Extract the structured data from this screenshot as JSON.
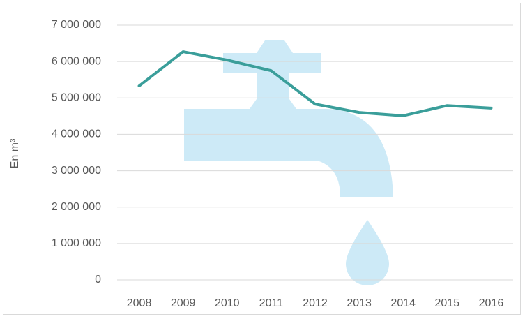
{
  "chart_data": {
    "type": "line",
    "y_label": "En m³",
    "categories": [
      "2008",
      "2009",
      "2010",
      "2011",
      "2012",
      "2013",
      "2014",
      "2015",
      "2016"
    ],
    "series": [
      {
        "color": "#3a9e9a",
        "values": [
          5330000,
          6270000,
          6040000,
          5750000,
          4830000,
          4600000,
          4510000,
          4790000,
          4720000
        ]
      }
    ],
    "ylim": [
      0,
      7000000
    ],
    "yticks": [
      0,
      {
        "value": 1000000,
        "label": "1 000 000"
      },
      {
        "value": 2000000,
        "label": "2 000 000"
      },
      {
        "value": 3000000,
        "label": "3 000 000"
      },
      {
        "value": 4000000,
        "label": "4 000 000"
      },
      {
        "value": 5000000,
        "label": "5 000 000"
      },
      {
        "value": 6000000,
        "label": "6 000 000"
      },
      {
        "value": 7000000,
        "label": "7 000 000"
      }
    ],
    "grid": true
  }
}
